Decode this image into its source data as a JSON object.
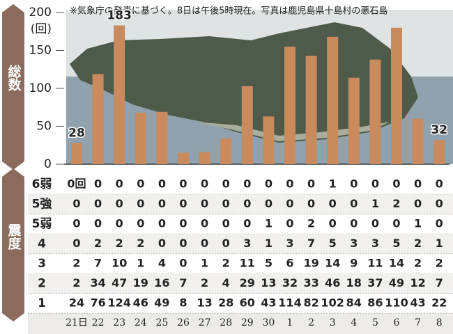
{
  "chart_data": {
    "type": "bar",
    "note": "※気象庁の発表に基づく。8日は午後5時現在。写真は鹿児島県十島村の悪石島",
    "side_label": "総数",
    "y_unit": "(回)",
    "categories": [
      "21日",
      "22",
      "23",
      "24",
      "25",
      "26",
      "27",
      "28",
      "29",
      "30",
      "1",
      "2",
      "3",
      "4",
      "5",
      "6",
      "7",
      "8"
    ],
    "values": [
      28,
      119,
      183,
      68,
      69,
      15,
      16,
      34,
      103,
      63,
      155,
      143,
      168,
      114,
      138,
      180,
      60,
      32
    ],
    "value_labels": [
      "28",
      null,
      "183",
      null,
      null,
      null,
      null,
      null,
      null,
      null,
      null,
      null,
      null,
      null,
      null,
      null,
      null,
      "32"
    ],
    "color": "#c98a5e",
    "ylim": [
      0,
      200
    ],
    "yticks": [
      0,
      50,
      100,
      150,
      200
    ]
  },
  "table": {
    "side_label": "震度",
    "rows": [
      {
        "label": "6弱",
        "cells": [
          "0回",
          "0",
          "0",
          "0",
          "0",
          "0",
          "0",
          "0",
          "0",
          "0",
          "0",
          "0",
          "1",
          "0",
          "0",
          "0",
          "0",
          "0"
        ]
      },
      {
        "label": "5強",
        "cells": [
          "0",
          "0",
          "0",
          "0",
          "0",
          "0",
          "0",
          "0",
          "0",
          "0",
          "0",
          "0",
          "0",
          "0",
          "1",
          "2",
          "0",
          "0"
        ]
      },
      {
        "label": "5弱",
        "cells": [
          "0",
          "0",
          "0",
          "0",
          "0",
          "0",
          "0",
          "0",
          "0",
          "1",
          "0",
          "2",
          "0",
          "0",
          "0",
          "0",
          "1",
          "0"
        ]
      },
      {
        "label": "4",
        "cells": [
          "0",
          "2",
          "2",
          "2",
          "0",
          "0",
          "0",
          "0",
          "3",
          "1",
          "3",
          "7",
          "5",
          "3",
          "3",
          "5",
          "2",
          "1"
        ]
      },
      {
        "label": "3",
        "cells": [
          "2",
          "7",
          "10",
          "1",
          "4",
          "0",
          "1",
          "2",
          "11",
          "5",
          "6",
          "19",
          "14",
          "9",
          "11",
          "14",
          "2",
          "2"
        ]
      },
      {
        "label": "2",
        "cells": [
          "2",
          "34",
          "47",
          "19",
          "16",
          "7",
          "2",
          "4",
          "29",
          "13",
          "32",
          "33",
          "46",
          "18",
          "37",
          "49",
          "12",
          "7"
        ]
      },
      {
        "label": "1",
        "cells": [
          "24",
          "76",
          "124",
          "46",
          "49",
          "8",
          "13",
          "28",
          "60",
          "43",
          "114",
          "82",
          "102",
          "84",
          "86",
          "110",
          "43",
          "22"
        ]
      }
    ]
  }
}
